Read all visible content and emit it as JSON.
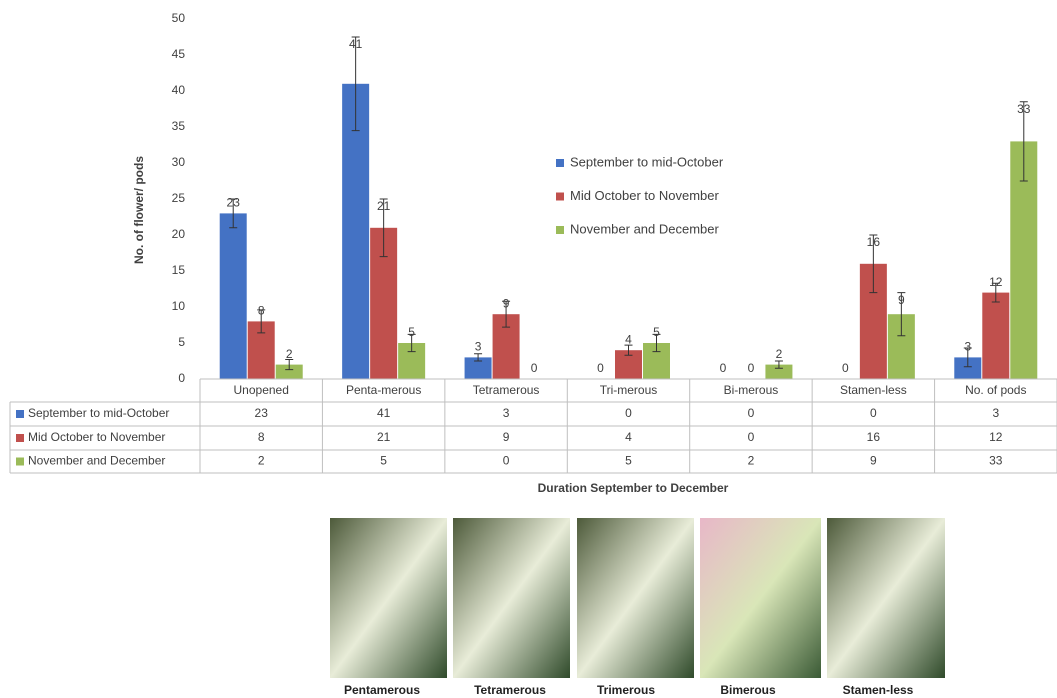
{
  "chart_data": {
    "type": "bar",
    "y_label": "No. of flower/ pods",
    "x_label": "Duration September to December",
    "categories": [
      "Unopened",
      "Penta-merous",
      "Tetramerous",
      "Tri-merous",
      "Bi-merous",
      "Stamen-less",
      "No. of pods"
    ],
    "series": [
      {
        "name": "September to mid-October",
        "color": "#4472c4",
        "values": [
          23,
          41,
          3,
          0,
          0,
          0,
          3
        ],
        "errors": [
          2,
          6.5,
          0.5,
          null,
          null,
          null,
          1.3
        ]
      },
      {
        "name": "Mid October to November",
        "color": "#c0504d",
        "values": [
          8,
          21,
          9,
          4,
          0,
          16,
          12
        ],
        "errors": [
          1.6,
          4,
          1.8,
          0.7,
          null,
          4,
          1.3
        ]
      },
      {
        "name": "November and December",
        "color": "#9bbb59",
        "values": [
          2,
          5,
          0,
          5,
          2,
          9,
          33
        ],
        "errors": [
          0.7,
          1.2,
          null,
          1.2,
          0.5,
          3,
          5.5
        ]
      }
    ],
    "ylim": [
      0,
      50
    ],
    "yticks": [
      0,
      5,
      10,
      15,
      20,
      25,
      30,
      35,
      40,
      45,
      50
    ],
    "grid": false
  },
  "photos": [
    "Pentamerous",
    "Tetramerous",
    "Trimerous",
    "Bimerous",
    "Stamen-less"
  ]
}
